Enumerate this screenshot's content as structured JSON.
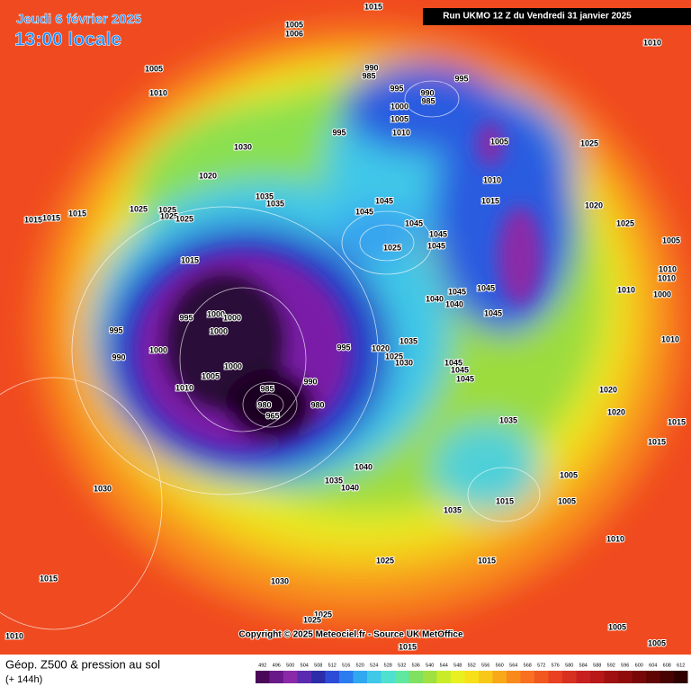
{
  "header": {
    "title": "Jeudi 6 février 2025",
    "subtitle": "13:00 locale",
    "run": "Run UKMO 12 Z du Vendredi 31 janvier 2025"
  },
  "copyright": "Copyright © 2025 Meteociel.fr - Source UK MetOffice",
  "legend": {
    "title": "Géop. Z500 & pression au sol",
    "lead": "(+ 144h)",
    "ticks": [
      492,
      496,
      500,
      504,
      508,
      512,
      516,
      520,
      524,
      528,
      532,
      536,
      540,
      544,
      548,
      552,
      556,
      560,
      564,
      568,
      572,
      576,
      580,
      584,
      588,
      592,
      596,
      600,
      604,
      608,
      612
    ]
  },
  "isobar_labels": [
    1015,
    1005,
    1006,
    1010,
    1005,
    1010,
    990,
    985,
    995,
    990,
    985,
    995,
    1000,
    1005,
    1010,
    995,
    1005,
    1025,
    1030,
    1020,
    1010,
    1015,
    1035,
    1035,
    1045,
    1045,
    1045,
    1020,
    1015,
    1015,
    1015,
    1025,
    1025,
    1025,
    1025,
    1045,
    1045,
    1025,
    1025,
    1005,
    1015,
    1010,
    1010,
    1010,
    1000,
    1045,
    1045,
    1040,
    1040,
    1045,
    995,
    1000,
    1000,
    1000,
    995,
    1010,
    995,
    1020,
    1035,
    1025,
    1030,
    1000,
    990,
    1005,
    1000,
    1045,
    1045,
    1045,
    990,
    1010,
    985,
    980,
    980,
    965,
    1020,
    1020,
    1015,
    1035,
    1015,
    1040,
    1035,
    1040,
    1030,
    1005,
    1035,
    1015,
    1005,
    1010,
    1025,
    1015,
    1030,
    1015,
    1025,
    1025,
    1005,
    1010,
    1015,
    1005
  ]
}
